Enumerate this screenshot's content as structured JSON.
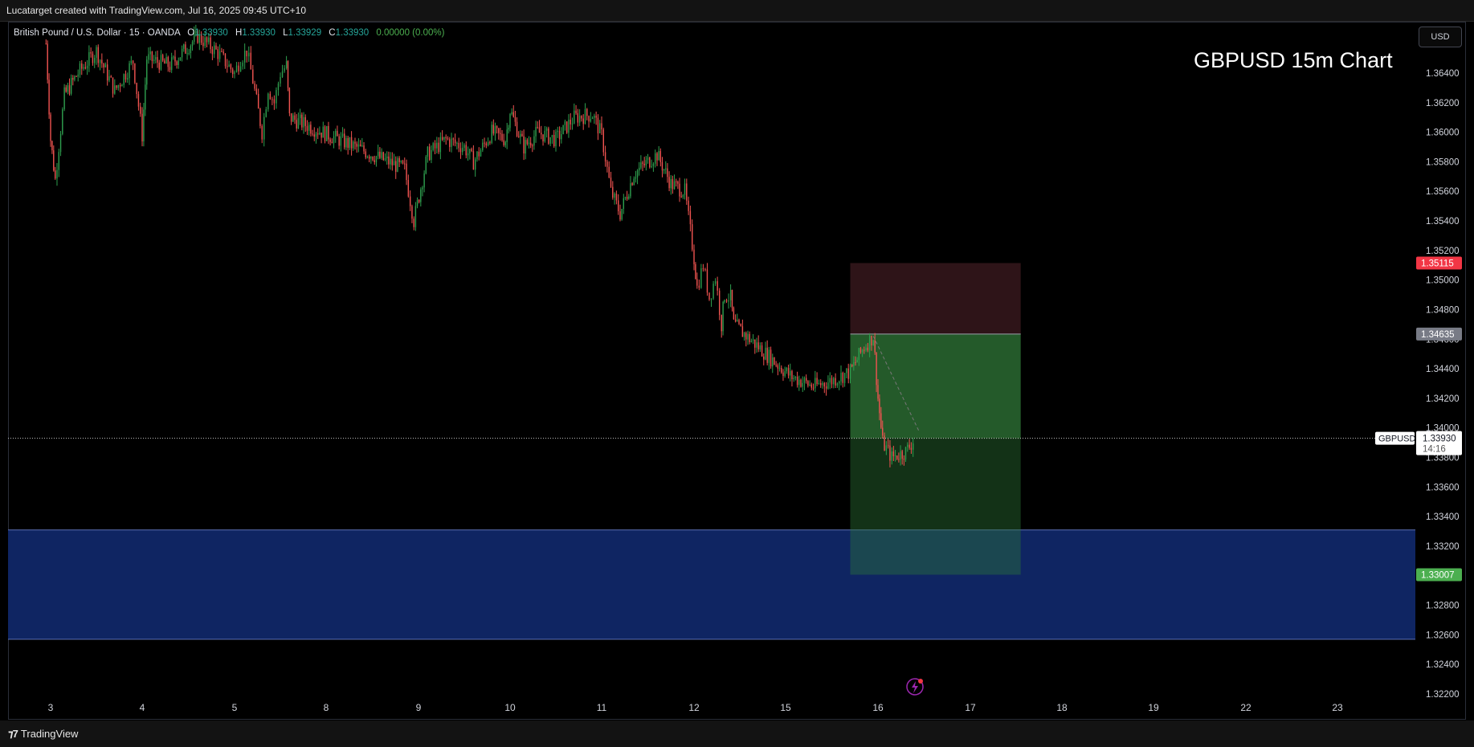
{
  "header": {
    "attribution": "Lucatarget created with TradingView.com, Jul 16, 2025 09:45 UTC+10"
  },
  "legend": {
    "symbol": "British Pound / U.S. Dollar · 15 · OANDA",
    "o_label": "O",
    "o_value": "1.33930",
    "h_label": "H",
    "h_value": "1.33930",
    "l_label": "L",
    "l_value": "1.33929",
    "c_label": "C",
    "c_value": "1.33930",
    "change": "0.00000 (0.00%)"
  },
  "currency_button": "USD",
  "footer": {
    "brand": "TradingView"
  },
  "colors": {
    "up": "#26a69a",
    "down": "#ef5350",
    "stop_zone": "#2e1418",
    "target_zone": "#245a2a",
    "demand_zone": "#0f2562",
    "stop_label": "#f23645",
    "entry_label": "#787b86",
    "target_label": "#4caf50"
  },
  "chart_data": {
    "type": "candlestick",
    "title": "GBPUSD 15m Chart",
    "symbol": "GBPUSD",
    "timeframe": "15",
    "ylim": [
      1.321,
      1.366
    ],
    "y_ticks": [
      "1.36400",
      "1.36200",
      "1.36000",
      "1.35800",
      "1.35600",
      "1.35400",
      "1.35200",
      "1.35000",
      "1.34800",
      "1.34600",
      "1.34400",
      "1.34200",
      "1.34000",
      "1.33800",
      "1.33600",
      "1.33400",
      "1.33200",
      "1.33000",
      "1.32800",
      "1.32600",
      "1.32400",
      "1.32200"
    ],
    "x_ticks": [
      "3",
      "4",
      "5",
      "8",
      "9",
      "10",
      "11",
      "12",
      "15",
      "16",
      "17",
      "18",
      "19",
      "22",
      "23"
    ],
    "price_path": [
      {
        "d": 2.95,
        "p": 1.366
      },
      {
        "d": 3.0,
        "p": 1.3595
      },
      {
        "d": 3.05,
        "p": 1.3568
      },
      {
        "d": 3.15,
        "p": 1.3625
      },
      {
        "d": 3.3,
        "p": 1.364
      },
      {
        "d": 3.5,
        "p": 1.3655
      },
      {
        "d": 3.7,
        "p": 1.3628
      },
      {
        "d": 3.9,
        "p": 1.3648
      },
      {
        "d": 4.0,
        "p": 1.3598
      },
      {
        "d": 4.05,
        "p": 1.365
      },
      {
        "d": 4.3,
        "p": 1.3645
      },
      {
        "d": 4.6,
        "p": 1.3665
      },
      {
        "d": 4.8,
        "p": 1.3655
      },
      {
        "d": 5.0,
        "p": 1.364
      },
      {
        "d": 5.2,
        "p": 1.365
      },
      {
        "d": 5.4,
        "p": 1.3655
      },
      {
        "d": 5.6,
        "p": 1.3635
      },
      {
        "d": 5.9,
        "p": 1.36
      },
      {
        "d": 6.1,
        "p": 1.363
      },
      {
        "d": 6.3,
        "p": 1.362
      },
      {
        "d": 6.5,
        "p": 1.364
      },
      {
        "d": 6.7,
        "p": 1.3645
      },
      {
        "d": 6.8,
        "p": 1.361
      },
      {
        "d": 8.85,
        "p": 1.3575
      },
      {
        "d": 8.95,
        "p": 1.354
      },
      {
        "d": 9.1,
        "p": 1.3585
      },
      {
        "d": 9.3,
        "p": 1.3595
      },
      {
        "d": 9.5,
        "p": 1.359
      },
      {
        "d": 9.6,
        "p": 1.358
      },
      {
        "d": 9.8,
        "p": 1.36
      },
      {
        "d": 9.95,
        "p": 1.3595
      },
      {
        "d": 10.0,
        "p": 1.3615
      },
      {
        "d": 10.15,
        "p": 1.359
      },
      {
        "d": 10.3,
        "p": 1.36
      },
      {
        "d": 10.5,
        "p": 1.3595
      },
      {
        "d": 10.7,
        "p": 1.361
      },
      {
        "d": 10.9,
        "p": 1.3612
      },
      {
        "d": 11.0,
        "p": 1.3598
      },
      {
        "d": 11.1,
        "p": 1.356
      },
      {
        "d": 11.2,
        "p": 1.3545
      },
      {
        "d": 11.35,
        "p": 1.3572
      },
      {
        "d": 11.5,
        "p": 1.358
      },
      {
        "d": 11.6,
        "p": 1.3585
      },
      {
        "d": 11.75,
        "p": 1.3565
      },
      {
        "d": 11.9,
        "p": 1.356
      },
      {
        "d": 12.0,
        "p": 1.3515
      },
      {
        "d": 12.1,
        "p": 1.3495
      },
      {
        "d": 12.3,
        "p": 1.351
      },
      {
        "d": 12.5,
        "p": 1.3488
      },
      {
        "d": 12.7,
        "p": 1.3502
      },
      {
        "d": 12.9,
        "p": 1.347
      },
      {
        "d": 13.0,
        "p": 1.349
      },
      {
        "d": 13.2,
        "p": 1.3488
      },
      {
        "d": 13.3,
        "p": 1.347
      },
      {
        "d": 15.05,
        "p": 1.3435
      },
      {
        "d": 15.3,
        "p": 1.3428
      },
      {
        "d": 15.5,
        "p": 1.3432
      },
      {
        "d": 15.7,
        "p": 1.3438
      },
      {
        "d": 15.85,
        "p": 1.3455
      },
      {
        "d": 15.95,
        "p": 1.3462
      },
      {
        "d": 16.0,
        "p": 1.342
      },
      {
        "d": 16.05,
        "p": 1.339
      },
      {
        "d": 16.15,
        "p": 1.338
      },
      {
        "d": 16.3,
        "p": 1.3384
      },
      {
        "d": 16.4,
        "p": 1.3393
      }
    ],
    "position": {
      "type": "short",
      "stop": 1.35115,
      "entry": 1.34635,
      "target": 1.33007,
      "start_day": 15.7,
      "end_day": 17.55
    },
    "zone": {
      "top": 1.3331,
      "bottom": 1.3257,
      "label": ""
    },
    "current_price": {
      "label": "GBPUSD",
      "value": "1.33930",
      "countdown": "14:16",
      "price": 1.3393
    },
    "price_labels": {
      "stop": "1.35115",
      "entry": "1.34635",
      "target": "1.33007"
    }
  }
}
